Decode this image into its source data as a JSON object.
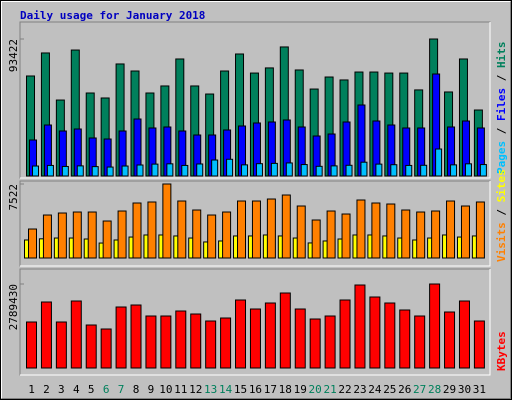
{
  "chart_data": {
    "type": "bar",
    "title": "Daily usage for January 2018",
    "title_color": "#0000c0",
    "categories": [
      "1",
      "2",
      "3",
      "4",
      "5",
      "6",
      "7",
      "8",
      "9",
      "10",
      "11",
      "12",
      "13",
      "14",
      "15",
      "16",
      "17",
      "18",
      "19",
      "20",
      "21",
      "22",
      "23",
      "24",
      "25",
      "26",
      "27",
      "28",
      "29",
      "30",
      "31"
    ],
    "category_colors": [
      "#000000",
      "#000000",
      "#000000",
      "#000000",
      "#000000",
      "#00805c",
      "#00805c",
      "#000000",
      "#000000",
      "#000000",
      "#000000",
      "#000000",
      "#00805c",
      "#00805c",
      "#000000",
      "#000000",
      "#000000",
      "#000000",
      "#000000",
      "#00805c",
      "#00805c",
      "#000000",
      "#000000",
      "#000000",
      "#000000",
      "#000000",
      "#00805c",
      "#00805c",
      "#000000",
      "#000000",
      "#000000"
    ],
    "panels": [
      {
        "ylim": [
          0,
          93422
        ],
        "yticks": [
          93422
        ],
        "series": [
          {
            "name": "Hits",
            "color": "#00805c",
            "values": [
              68200,
              83900,
              51800,
              85900,
              56600,
              53200,
              76400,
              71600,
              56600,
              61400,
              79800,
              61400,
              55900,
              71600,
              83200,
              70200,
              73700,
              88000,
              72300,
              59300,
              67500,
              65500,
              70900,
              70900,
              70200,
              70200,
              58700,
              93422,
              57300,
              79800,
              45000
            ]
          },
          {
            "name": "Files",
            "color": "#0000ff",
            "values": [
              24550,
              34780,
              30690,
              32050,
              25920,
              25230,
              30690,
              38870,
              32740,
              33420,
              30690,
              27960,
              27960,
              31370,
              34100,
              36150,
              36830,
              38190,
              33420,
              27280,
              28640,
              36830,
              48420,
              37510,
              34780,
              32740,
              32740,
              69560,
              33420,
              37510,
              32740
            ]
          },
          {
            "name": "Pages",
            "color": "#00c0ff",
            "values": [
              6800,
              7200,
              6500,
              6900,
              6400,
              6100,
              6800,
              7500,
              8100,
              8300,
              7200,
              8200,
              10900,
              11400,
              7600,
              8400,
              8600,
              8900,
              7800,
              6600,
              6900,
              7300,
              9400,
              8100,
              7700,
              7200,
              7300,
              18400,
              7600,
              8300,
              7800
            ]
          }
        ]
      },
      {
        "ylim": [
          0,
          7522
        ],
        "yticks": [
          7522
        ],
        "series": [
          {
            "name": "Sites",
            "color": "#ffff00",
            "values": [
              1830,
              1950,
              2030,
              2030,
              1930,
              1520,
              1830,
              2130,
              2340,
              2340,
              2240,
              2030,
              1630,
              1730,
              2240,
              2240,
              2340,
              2240,
              2030,
              1530,
              1730,
              1930,
              2340,
              2340,
              2240,
              2030,
              1830,
              2030,
              2340,
              2130,
              2240
            ]
          },
          {
            "name": "Visits",
            "color": "#ff8000",
            "values": [
              2946,
              4369,
              4573,
              4674,
              4674,
              3760,
              4776,
              5590,
              5692,
              7522,
              5793,
              4878,
              4369,
              4674,
              5793,
              5793,
              5996,
              6403,
              5285,
              3862,
              4776,
              4471,
              5895,
              5590,
              5488,
              4878,
              4674,
              4776,
              5793,
              5285,
              5692
            ]
          }
        ]
      },
      {
        "ylim": [
          0,
          2789430
        ],
        "yticks": [
          2789430
        ],
        "series": [
          {
            "name": "KBytes",
            "color": "#ff0000",
            "values": [
              1527500,
              2191700,
              1527500,
              2224900,
              1427900,
              1295100,
              2025600,
              2092000,
              1726800,
              1726800,
              1892800,
              1793200,
              1560700,
              1660400,
              2258100,
              1959200,
              2158500,
              2490500,
              1959200,
              1627100,
              1726800,
              2258100,
              2756000,
              2357700,
              2158500,
              1926000,
              1726800,
              2789430,
              1859600,
              2224900,
              1560700
            ]
          }
        ]
      }
    ]
  }
}
